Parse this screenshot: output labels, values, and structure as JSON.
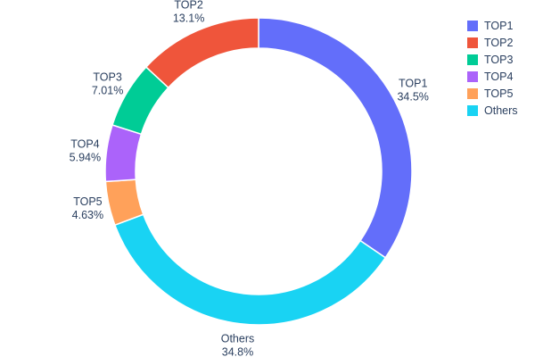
{
  "chart_data": {
    "type": "pie",
    "hole": 0.8,
    "title": "",
    "segments": [
      {
        "label": "TOP1",
        "value": 34.5,
        "pct_label": "34.5%",
        "color": "#636EFA"
      },
      {
        "label": "TOP2",
        "value": 13.1,
        "pct_label": "13.1%",
        "color": "#EF553B"
      },
      {
        "label": "TOP3",
        "value": 7.01,
        "pct_label": "7.01%",
        "color": "#00CC96"
      },
      {
        "label": "TOP4",
        "value": 5.94,
        "pct_label": "5.94%",
        "color": "#AB63FA"
      },
      {
        "label": "TOP5",
        "value": 4.63,
        "pct_label": "4.63%",
        "color": "#FFA15A"
      },
      {
        "label": "Others",
        "value": 34.8,
        "pct_label": "34.8%",
        "color": "#19D3F3"
      }
    ],
    "plot_order": [
      0,
      5,
      4,
      3,
      2,
      1
    ],
    "direction": "clockwise",
    "start_angle_deg": 0,
    "legend_position": "right",
    "legend_entries": [
      "TOP1",
      "TOP2",
      "TOP3",
      "TOP4",
      "TOP5",
      "Others"
    ],
    "text_color": "#2a3f5f",
    "background_color": "#ffffff"
  }
}
